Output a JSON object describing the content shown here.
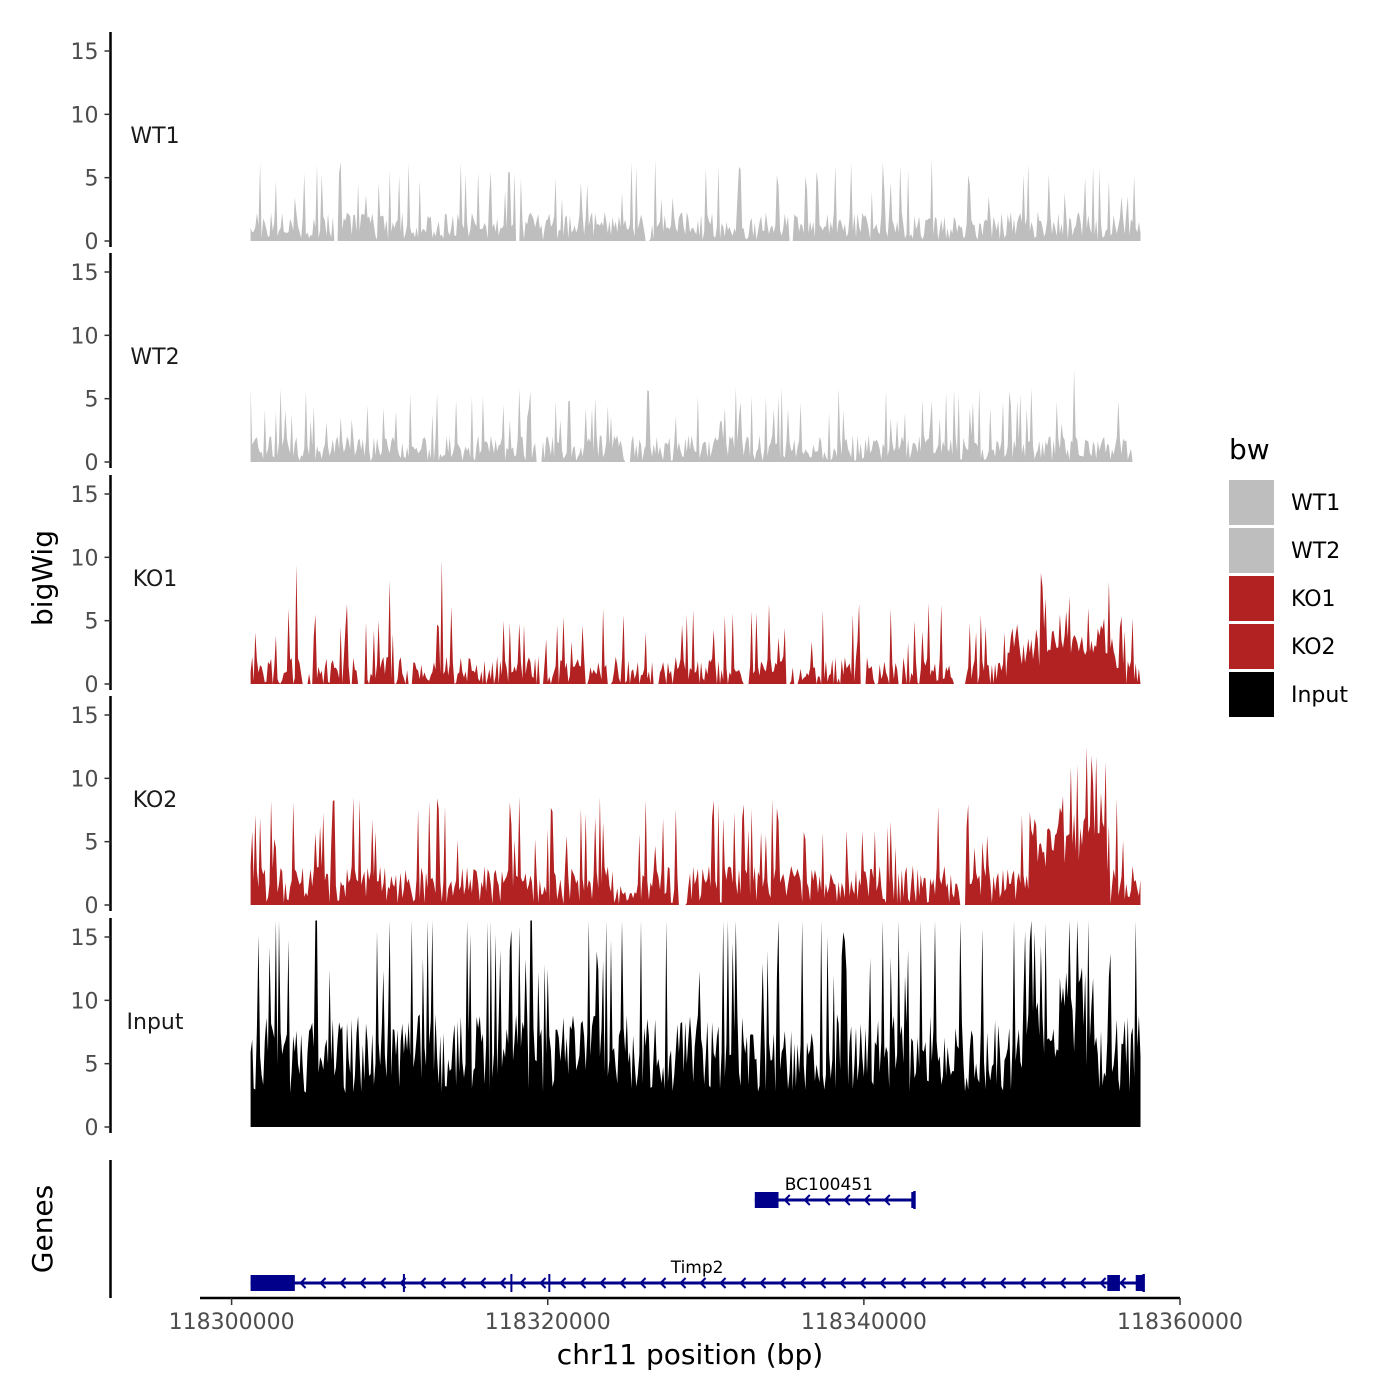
{
  "chart_data": {
    "type": "area",
    "chromosome": "chr11",
    "y_axis_title": "bigWig",
    "x_axis_title": "chr11 position (bp)",
    "genes_axis_title": "Genes",
    "xlim": [
      118298000,
      118360000
    ],
    "x_ticks": [
      118300000,
      118320000,
      118340000,
      118360000
    ],
    "x_tick_labels": [
      "118300000",
      "118320000",
      "118340000",
      "118360000"
    ],
    "ylim": [
      0,
      16.5
    ],
    "y_ticks": [
      0,
      5,
      10,
      15
    ],
    "y_tick_labels": [
      "0",
      "5",
      "10",
      "15"
    ],
    "data_range": [
      118301200,
      118357500
    ],
    "tracks": [
      {
        "name": "WT1",
        "label": "WT1",
        "color": "#bebebe",
        "typical": 1.2,
        "noise": 1.4,
        "peaks": [
          [
            118326800,
            6.4
          ],
          [
            118344300,
            6.5
          ],
          [
            118309300,
            4.6
          ],
          [
            118346600,
            5.2
          ],
          [
            118318300,
            4.9
          ],
          [
            118351700,
            5.3
          ],
          [
            118354000,
            5.0
          ]
        ],
        "gaps": [
          [
            118306500,
            118306700
          ],
          [
            118318000,
            118318300
          ],
          [
            118326200,
            118326400
          ],
          [
            118335300,
            118335500
          ]
        ]
      },
      {
        "name": "WT2",
        "label": "WT2",
        "color": "#bebebe",
        "typical": 1.1,
        "noise": 1.3,
        "peaks": [
          [
            118303100,
            5.8
          ],
          [
            118311300,
            5.4
          ],
          [
            118313000,
            5.4
          ],
          [
            118331900,
            5.9
          ],
          [
            118353300,
            7.3
          ],
          [
            118331200,
            4.3
          ],
          [
            118343700,
            4.9
          ],
          [
            118322800,
            4.2
          ]
        ],
        "gaps": [
          [
            118319300,
            118319600
          ],
          [
            118324900,
            118325200
          ],
          [
            118357000,
            118357500
          ]
        ]
      },
      {
        "name": "KO1",
        "label": "KO1",
        "color": "#b22222",
        "typical": 1.0,
        "noise": 1.5,
        "peaks": [
          [
            118304100,
            9.4
          ],
          [
            118310000,
            8.2
          ],
          [
            118313300,
            9.8
          ],
          [
            118321000,
            5.3
          ],
          [
            118331700,
            5.6
          ],
          [
            118354200,
            6.0
          ],
          [
            118352400,
            5.5
          ],
          [
            118355200,
            5.2
          ]
        ],
        "gaps": [
          [
            118304500,
            118304800
          ],
          [
            118308000,
            118308400
          ],
          [
            118311200,
            118311400
          ],
          [
            118319500,
            118319700
          ],
          [
            118323800,
            118324000
          ],
          [
            118326700,
            118327000
          ],
          [
            118332400,
            118332700
          ],
          [
            118335100,
            118335300
          ],
          [
            118335600,
            118335800
          ],
          [
            118339900,
            118340100
          ],
          [
            118342200,
            118342400
          ],
          [
            118345800,
            118346300
          ]
        ]
      },
      {
        "name": "KO2",
        "label": "KO2",
        "color": "#b22222",
        "typical": 1.6,
        "noise": 1.9,
        "peaks": [
          [
            118301800,
            6.9
          ],
          [
            118323000,
            6.9
          ],
          [
            118330400,
            6.9
          ],
          [
            118353500,
            11.1
          ],
          [
            118352600,
            8.6
          ],
          [
            118355500,
            6.3
          ],
          [
            118346500,
            6.2
          ],
          [
            118337400,
            5.7
          ]
        ],
        "gaps": [
          [
            118328300,
            118328700
          ],
          [
            118346100,
            118346400
          ]
        ]
      },
      {
        "name": "Input",
        "label": "Input",
        "color": "#000000",
        "typical": 5.8,
        "noise": 3.9,
        "peaks": [
          [
            118351500,
            16.1
          ],
          [
            118306200,
            12.4
          ],
          [
            118320000,
            12.5
          ],
          [
            118323200,
            12.4
          ],
          [
            118352800,
            12.2
          ],
          [
            118353800,
            12.6
          ],
          [
            118334500,
            11.8
          ],
          [
            118355500,
            11.9
          ]
        ],
        "gaps": []
      }
    ],
    "legend": {
      "title": "bw",
      "position": "right",
      "entries": [
        {
          "label": "WT1",
          "color": "#bebebe"
        },
        {
          "label": "WT2",
          "color": "#bebebe"
        },
        {
          "label": "KO1",
          "color": "#b22222"
        },
        {
          "label": "KO2",
          "color": "#b22222"
        },
        {
          "label": "Input",
          "color": "#000000"
        }
      ]
    },
    "genes": [
      {
        "name": "BC100451",
        "label": "BC100451",
        "strand": "-",
        "start": 118333100,
        "end": 118343200,
        "exons": [
          [
            118333100,
            118334600
          ],
          [
            118343000,
            118343200
          ]
        ],
        "junctions": [],
        "row": 0
      },
      {
        "name": "Timp2",
        "label": "Timp2",
        "strand": "-",
        "start": 118301200,
        "end": 118357700,
        "exons": [
          [
            118301200,
            118304000
          ],
          [
            118355400,
            118356200
          ],
          [
            118357200,
            118357700
          ]
        ],
        "junctions": [
          118310900,
          118317700,
          118320100
        ],
        "row": 1
      }
    ],
    "gene_color": "#00008b"
  }
}
